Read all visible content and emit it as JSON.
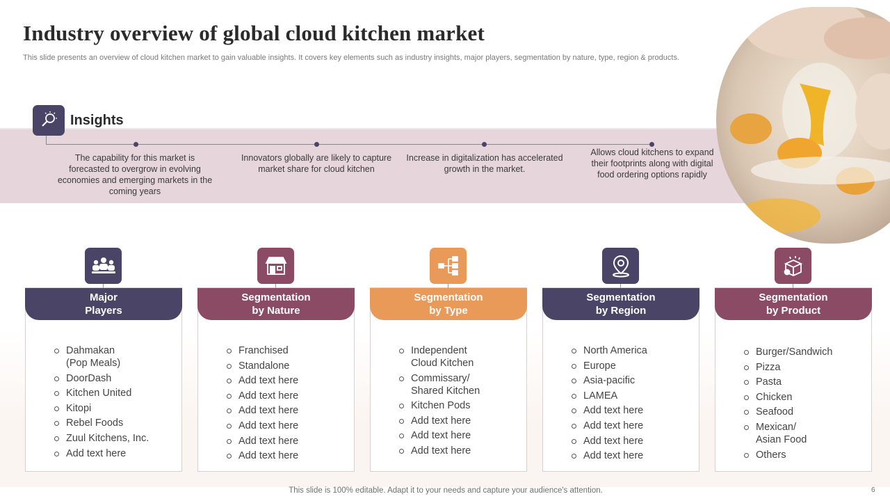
{
  "title": "Industry overview of global cloud kitchen market",
  "subtitle": "This slide presents an overview of cloud kitchen market to  gain valuable insights. It covers key  elements such as industry insights, major players, segmentation by nature, type,  region & products.",
  "insights": {
    "label": "Insights",
    "icon": "lightbulb-magnifier-icon",
    "items": [
      "The capability for this market is forecasted to overgrow  in evolving economies and emerging markets in the coming years",
      "Innovators  globally are likely to capture market share for cloud kitchen",
      "Increase in digitalization has accelerated growth  in the market.",
      "Allows cloud kitchens to expand their footprints  along with digital food ordering options rapidly"
    ]
  },
  "colors": {
    "navy": "#4a4466",
    "plum": "#8b4b65",
    "orange": "#e99a58",
    "band": "#e6d6db"
  },
  "segments": [
    {
      "header": "Major\nPlayers",
      "icon": "team-icon",
      "color": "#4a4466",
      "items": [
        "Dahmakan\n(Pop Meals)",
        "DoorDash",
        "Kitchen United",
        "Kitopi",
        "Rebel Foods",
        "Zuul Kitchens, Inc.",
        "Add text here"
      ]
    },
    {
      "header": "Segmentation\nby Nature",
      "icon": "storefront-icon",
      "color": "#8b4b65",
      "items": [
        "Franchised",
        "Standalone",
        "Add text here",
        "Add text here",
        "Add text here",
        "Add text here",
        "Add text here",
        "Add text here"
      ]
    },
    {
      "header": "Segmentation\nby Type",
      "icon": "hierarchy-icon",
      "color": "#e99a58",
      "items": [
        "Independent\nCloud Kitchen",
        "Commissary/\nShared Kitchen",
        "Kitchen Pods",
        "Add text here",
        "Add text here",
        "Add text here"
      ]
    },
    {
      "header": "Segmentation\nby Region",
      "icon": "location-pin-icon",
      "color": "#4a4466",
      "items": [
        "North America",
        "Europe",
        "Asia-pacific",
        "LAMEA",
        "Add text here",
        "Add text here",
        "Add text here",
        "Add text here"
      ]
    },
    {
      "header": "Segmentation\nby Product",
      "icon": "gift-box-icon",
      "color": "#8b4b65",
      "items": [
        "Burger/Sandwich",
        "Pizza",
        "Pasta",
        "Chicken",
        "Seafood",
        "Mexican/\nAsian Food",
        "Others"
      ]
    }
  ],
  "footer": "This slide is 100% editable. Adapt it to your needs and capture your audience's attention.",
  "page_number": "6"
}
